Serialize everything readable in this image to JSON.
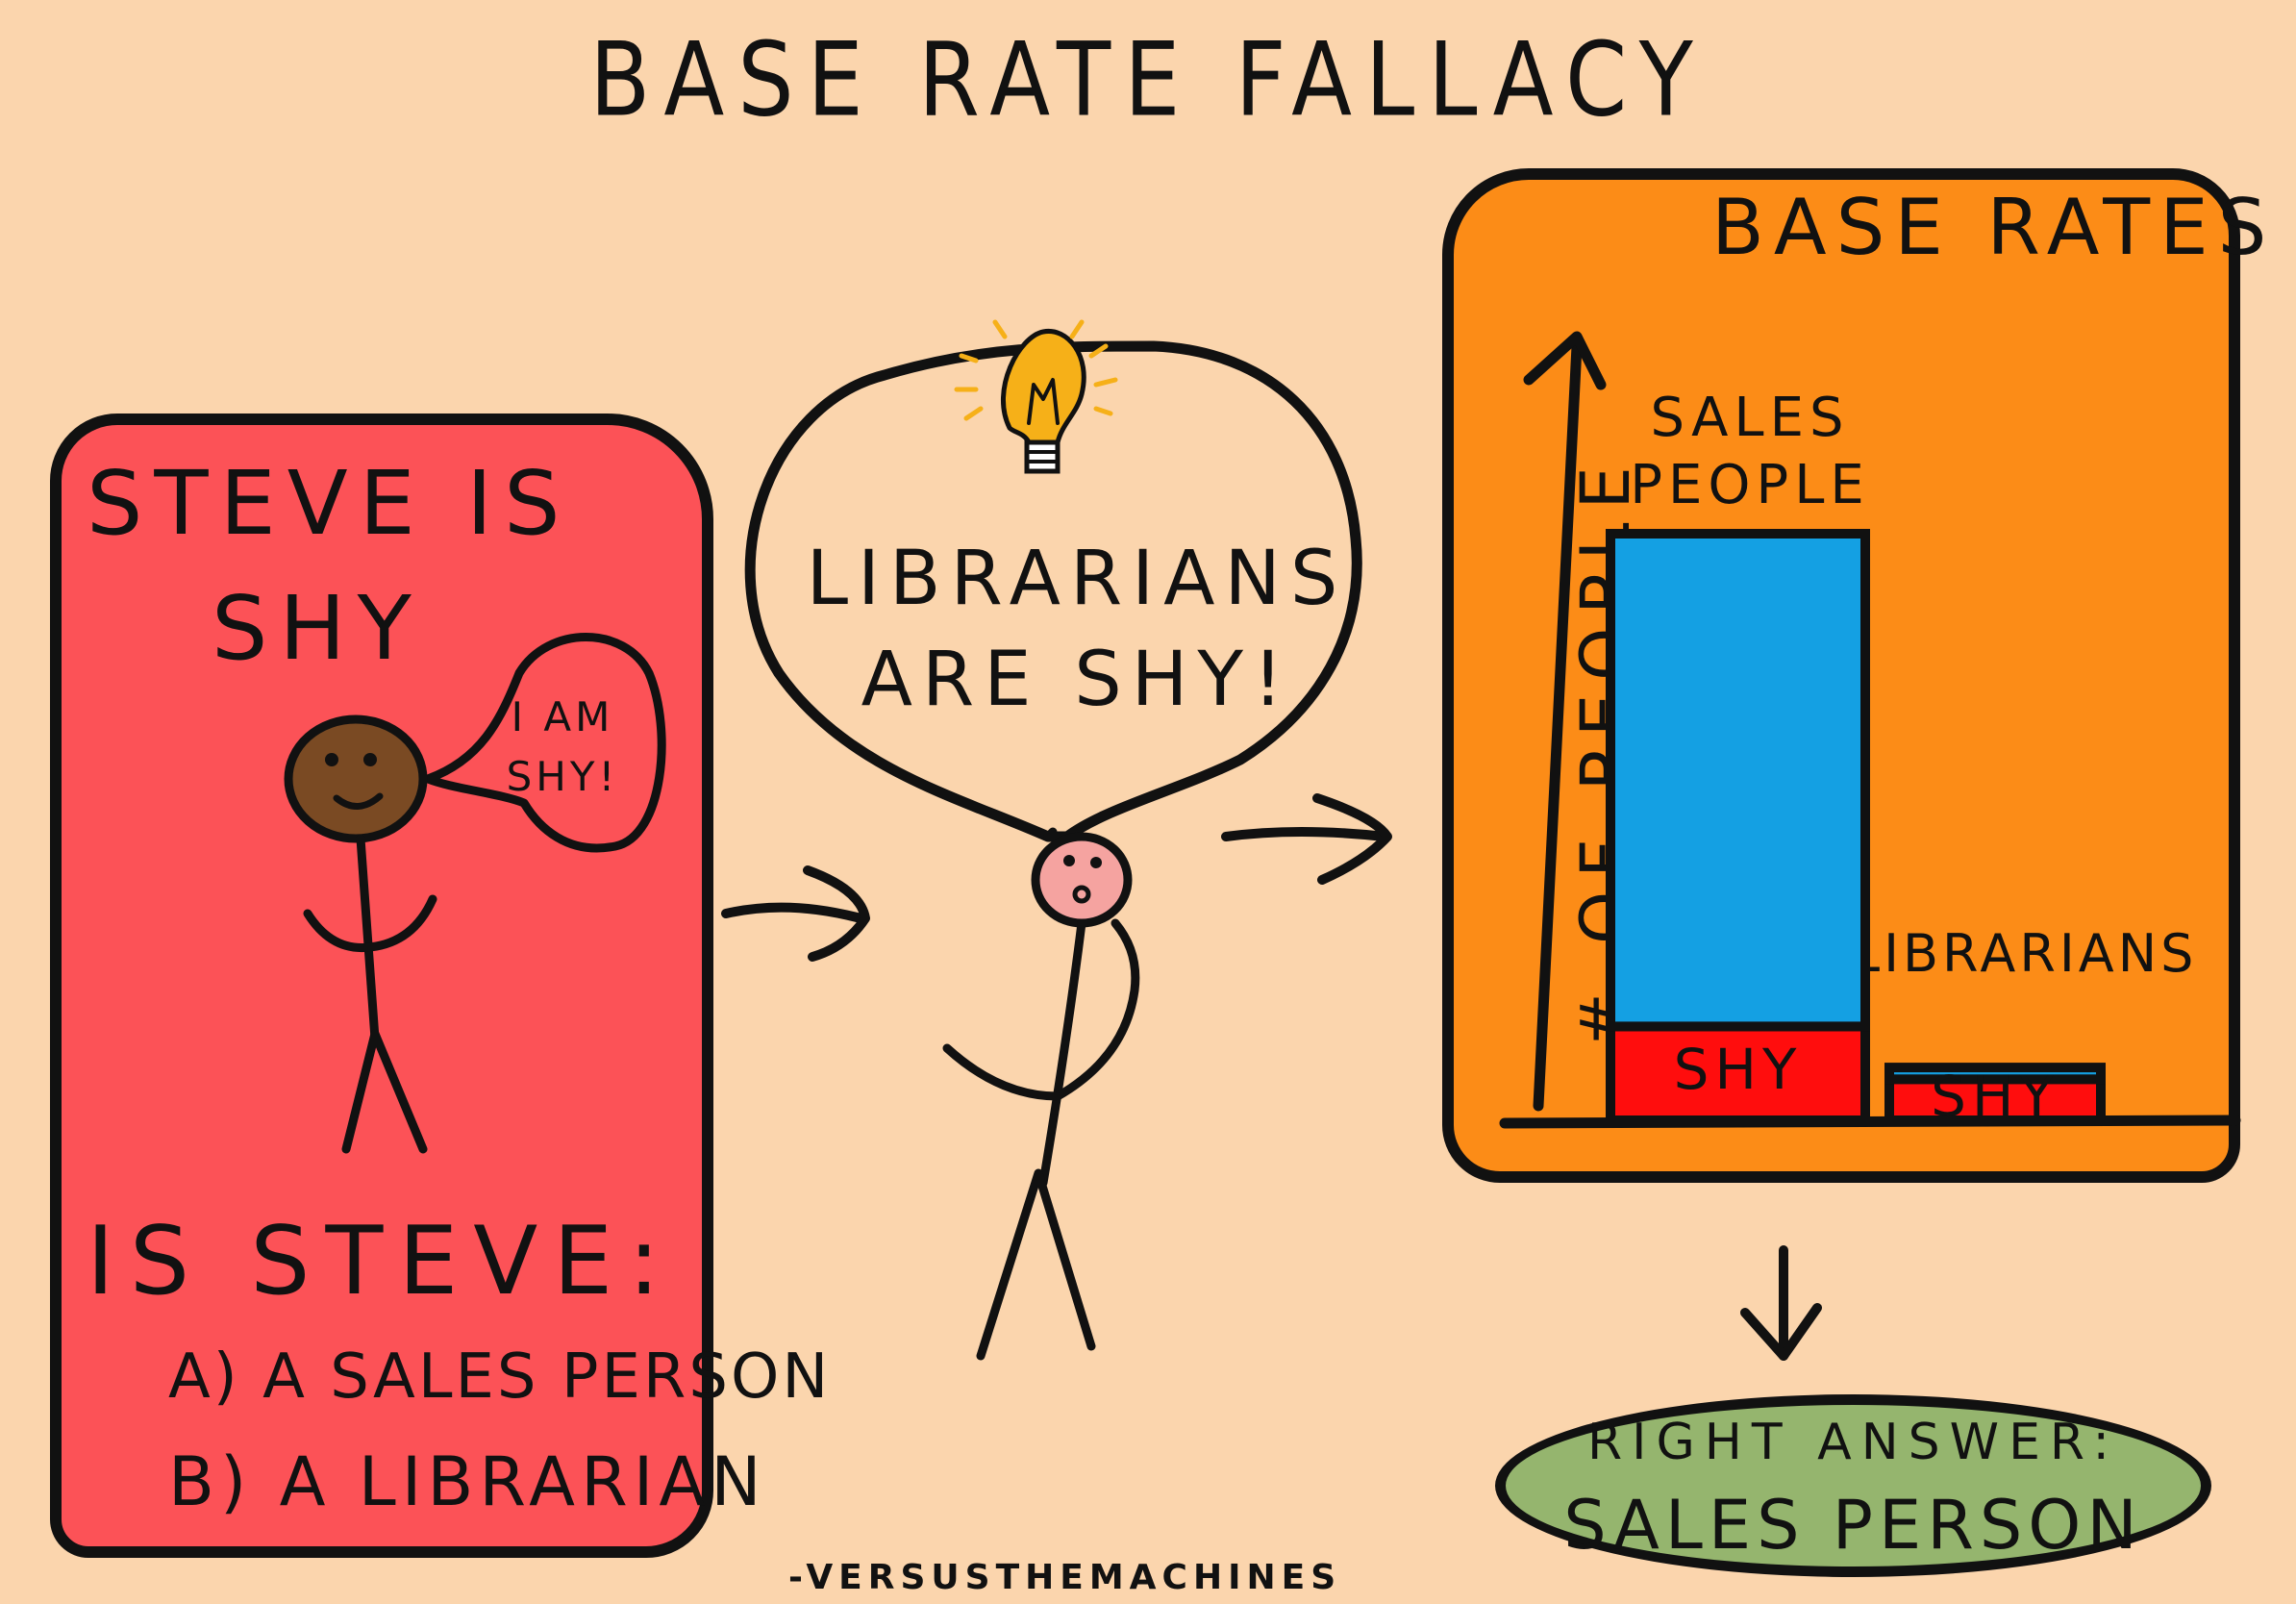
{
  "title": "BASE RATE FALLACY",
  "left_panel": {
    "statement_line1": "STEVE IS",
    "statement_line2": "SHY",
    "speech_bubble": "I AM SHY!",
    "question": "IS STEVE:",
    "option_a": "A) A SALES PERSON",
    "option_b": "B) A LIBRARIAN"
  },
  "middle": {
    "thought_line1": "LIBRARIANS",
    "thought_line2": "ARE SHY!"
  },
  "chart": {
    "title": "BASE RATES",
    "y_axis_label": "# OF PEOPLE",
    "sales_label": "SALES PEOPLE",
    "librarians_label": "LIBRARIANS",
    "shy_label": "SHY"
  },
  "chart_data": {
    "type": "bar",
    "title": "BASE RATES",
    "ylabel": "# OF PEOPLE",
    "categories": [
      "SALES PEOPLE",
      "LIBRARIANS"
    ],
    "series": [
      {
        "name": "SHY",
        "values": [
          16,
          7
        ]
      },
      {
        "name": "",
        "values": [
          84,
          2
        ]
      }
    ],
    "colors": {
      "shy": "#ff0d0d",
      "other": "#14a0e3"
    },
    "stacked": true
  },
  "answer": {
    "line1": "RIGHT ANSWER:",
    "line2": "SALES PERSON"
  },
  "credit": "-VERSUSTHEMACHINES",
  "colors": {
    "background": "#fbd5ad",
    "left_panel": "#fc5257",
    "chart_panel": "#fc8c17",
    "answer_oval": "#95b56e",
    "steve_face": "#7a4a23",
    "thinker_face": "#f5a3a0",
    "bulb": "#f6b018"
  },
  "icons": [
    "lightbulb-icon",
    "arrow-right-icon",
    "arrow-down-icon"
  ]
}
